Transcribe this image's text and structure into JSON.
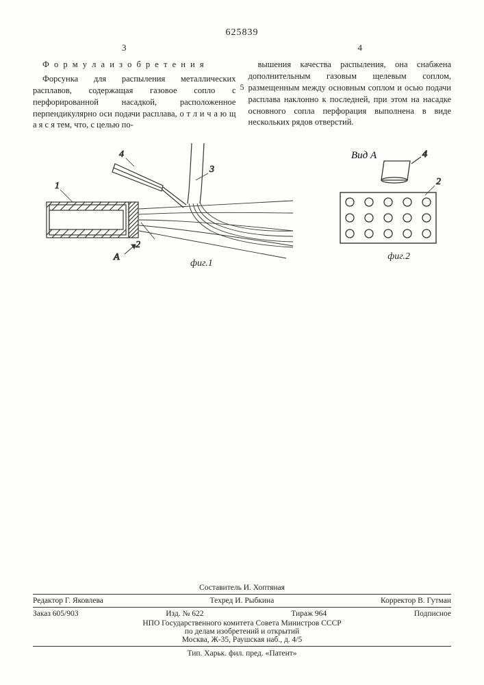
{
  "patent_number": "625839",
  "page_left_num": "3",
  "page_right_num": "4",
  "line_num": "5",
  "claim_title": "Ф о р м у л а  и з о б р е т е н и я",
  "col1_p1": "Форсунка для распыления металлических расплавов, содержащая газовое сопло с перфорированной насадкой, расположенное перпендикулярно оси подачи расплава, о т л и ч а ю щ а я с я  тем, что, с целью по-",
  "col2_p1": "вышения качества распыления, она снабжена дополнительным газовым щелевым соплом, размещенным между основным соплом и осью подачи расплава наклонно к последней, при этом на насадке основного сопла перфорация выполнена в виде нескольких рядов отверстий.",
  "fig1": {
    "label": "фиг.1",
    "callouts": [
      "1",
      "2",
      "3",
      "4"
    ],
    "view_arrow": "A",
    "stroke": "#333333"
  },
  "fig2": {
    "label": "фиг.2",
    "title": "Вид А",
    "callouts": [
      "2",
      "4"
    ],
    "hole_rows": 3,
    "hole_cols": 5,
    "stroke": "#333333"
  },
  "footer": {
    "compiler": "Составитель И. Хоптяная",
    "editor": "Редактор Г. Яковлева",
    "techred": "Техред И. Рыбкина",
    "corrector": "Корректор В. Гутман",
    "order": "Заказ 605/903",
    "izd": "Изд. № 622",
    "tirazh": "Тираж 964",
    "sub": "Подписное",
    "org1": "НПО Государственного комитета Совета Министров СССР",
    "org2": "по делам изобретений и открытий",
    "addr": "Москва, Ж-35, Раушская наб., д. 4/5",
    "printer": "Тип. Харьк. фил. пред. «Патент»"
  }
}
